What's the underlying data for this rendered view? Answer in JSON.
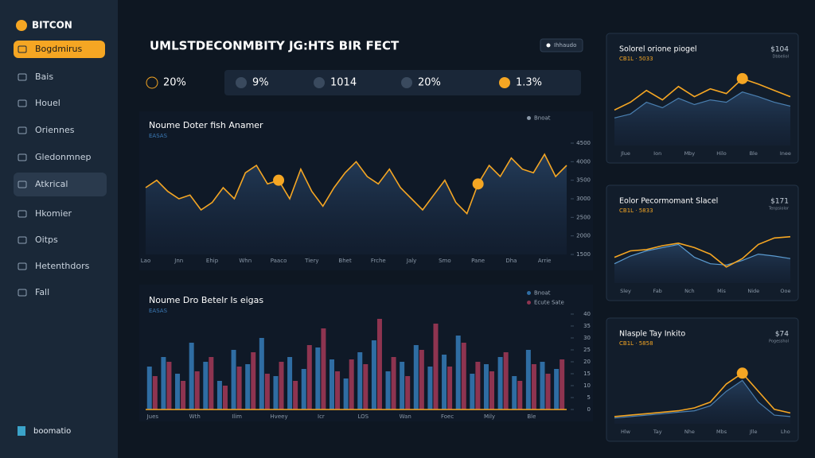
{
  "sidebar": {
    "brand": "BITCON",
    "items": [
      "Bogdmirus",
      "Bais",
      "Houel",
      "Oriennes",
      "Gledonmnep",
      "Atkrical",
      "Hkomier",
      "Oitps",
      "Hetenthdors",
      "Fall"
    ],
    "active": 0,
    "hover": 5,
    "footer": "boomatio"
  },
  "header": {
    "title": "UMLSTDECONMBITY JG:HTS BIR FECT",
    "button": "Ihhaudo"
  },
  "stats": [
    "20%",
    "9%",
    "1014",
    "20%",
    "1.3%"
  ],
  "chart_data": [
    {
      "type": "line",
      "title": "Noume Doter fish Anamer",
      "subtitle": "EASAS",
      "categories": [
        "Lao",
        null,
        null,
        "Jnn",
        null,
        null,
        "Ehip",
        null,
        null,
        "Whn",
        null,
        null,
        "Paaco",
        null,
        null,
        "Tiery",
        null,
        null,
        "Bhet",
        null,
        null,
        "Frche",
        null,
        null,
        "Jaly",
        null,
        null,
        "Smo",
        null,
        null,
        "Pane",
        null,
        null,
        "Dha",
        null,
        null,
        "Arrie",
        null,
        null
      ],
      "series": [
        {
          "name": "Bnoat",
          "color": "#f5a623",
          "values": [
            3300,
            3500,
            3200,
            3000,
            3100,
            2700,
            2900,
            3300,
            3000,
            3700,
            3900,
            3400,
            3500,
            3000,
            3800,
            3200,
            2800,
            3300,
            3700,
            4000,
            3600,
            3400,
            3800,
            3300,
            3000,
            2700,
            3100,
            3500,
            2900,
            2600,
            3400,
            3900,
            3600,
            4100,
            3800,
            3700,
            4200,
            3600,
            3900
          ]
        }
      ],
      "highlight": [
        12,
        30
      ],
      "ylim": [
        1500,
        4500
      ],
      "yticks": [
        4500,
        4000,
        3500,
        3000,
        2500,
        2000,
        1500
      ]
    },
    {
      "type": "bar",
      "title": "Noume Dro Betelr Is eigas",
      "subtitle": "EASAS",
      "categories": [
        "Jues",
        null,
        null,
        "Wth",
        null,
        null,
        "Ilim",
        null,
        null,
        "Hveey",
        null,
        null,
        "Icr",
        null,
        null,
        "LOS",
        null,
        null,
        "Wan",
        null,
        null,
        "Foec",
        null,
        null,
        "Mily",
        null,
        null,
        "Ble",
        null,
        null
      ],
      "series": [
        {
          "name": "Bnoat",
          "color": "#2f6da3",
          "values": [
            18,
            22,
            15,
            28,
            20,
            12,
            25,
            19,
            30,
            14,
            22,
            17,
            26,
            21,
            13,
            24,
            29,
            16,
            20,
            27,
            18,
            23,
            31,
            15,
            19,
            22,
            14,
            25,
            20,
            17
          ]
        },
        {
          "name": "Ecute Sate",
          "color": "#8e3450",
          "values": [
            14,
            20,
            12,
            16,
            22,
            10,
            18,
            24,
            15,
            20,
            12,
            27,
            34,
            16,
            21,
            19,
            38,
            22,
            14,
            25,
            36,
            18,
            28,
            20,
            16,
            24,
            12,
            19,
            15,
            21
          ]
        }
      ],
      "ylim": [
        0,
        40
      ],
      "yticks": [
        40,
        35,
        30,
        25,
        20,
        15,
        10,
        5,
        0
      ]
    },
    {
      "type": "line",
      "title": "Solorel orione piogel",
      "subtitle": "CB1L · 5033",
      "value": "$104",
      "caption": "Dbbeliol",
      "categories": [
        "Jlue",
        null,
        "Ion",
        null,
        "Mby",
        null,
        "Hilo",
        null,
        "Ble",
        null,
        "Inee",
        null
      ],
      "series": [
        {
          "name": "Orange",
          "color": "#f5a623",
          "values": [
            45,
            55,
            70,
            58,
            75,
            62,
            72,
            66,
            85,
            78,
            70,
            62
          ]
        },
        {
          "name": "Blue",
          "color": "#4a7fb0",
          "values": [
            35,
            40,
            55,
            48,
            60,
            52,
            58,
            55,
            68,
            62,
            55,
            50
          ]
        }
      ],
      "highlight": [
        8
      ],
      "ylim": [
        0,
        100
      ]
    },
    {
      "type": "line",
      "title": "Eolor Pecormomant Slacel",
      "subtitle": "CB1L · 5833",
      "value": "$171",
      "caption": "Tenpsiolor",
      "categories": [
        "Sley",
        null,
        "Fab",
        null,
        "Nch",
        null,
        "Mis",
        null,
        "Nide",
        null,
        "Ooe",
        null
      ],
      "series": [
        {
          "name": "Orange",
          "color": "#f5a623",
          "values": [
            40,
            50,
            52,
            58,
            62,
            55,
            45,
            25,
            38,
            60,
            70,
            72
          ]
        },
        {
          "name": "Blue",
          "color": "#5b9bd0",
          "values": [
            30,
            42,
            50,
            55,
            60,
            40,
            30,
            28,
            35,
            45,
            42,
            38
          ]
        }
      ],
      "highlight": [],
      "ylim": [
        0,
        100
      ]
    },
    {
      "type": "line",
      "title": "Nlasple Tay Inkito",
      "subtitle": "CB1L · 5858",
      "value": "$74",
      "caption": "Pogesshol",
      "categories": [
        "Hlw",
        null,
        "Tay",
        null,
        "Nhe",
        null,
        "Mbs",
        null,
        "Jlle",
        null,
        "Lho",
        null
      ],
      "series": [
        {
          "name": "Orange",
          "color": "#f5a623",
          "values": [
            10,
            12,
            14,
            16,
            18,
            22,
            30,
            55,
            70,
            45,
            20,
            15
          ]
        },
        {
          "name": "Blue",
          "color": "#4a7fb0",
          "values": [
            8,
            10,
            12,
            14,
            16,
            18,
            25,
            45,
            60,
            30,
            12,
            10
          ]
        }
      ],
      "highlight": [
        8
      ],
      "ylim": [
        0,
        100
      ]
    }
  ]
}
